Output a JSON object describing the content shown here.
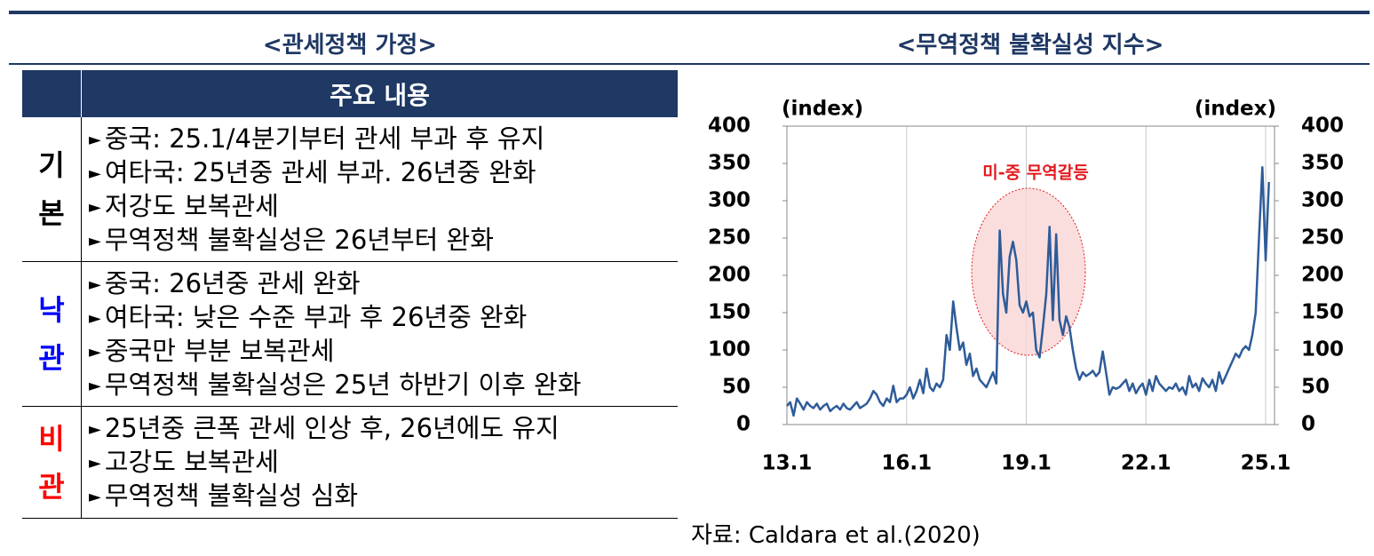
{
  "left": {
    "title": "<관세정책 가정>",
    "table": {
      "header": "주요 내용",
      "rows": [
        {
          "label": "기본",
          "label_color": "#000000",
          "items": [
            "중국: 25.1/4분기부터 관세 부과 후 유지",
            "여타국: 25년중 관세 부과. 26년중 완화",
            "저강도 보복관세",
            "무역정책 불확실성은 26년부터 완화"
          ]
        },
        {
          "label": "낙관",
          "label_color": "#0000ff",
          "items": [
            "중국: 26년중 관세 완화",
            "여타국: 낮은 수준 부과 후 26년중 완화",
            "중국만 부분 보복관세",
            "무역정책 불확실성은 25년 하반기 이후 완화"
          ]
        },
        {
          "label": "비관",
          "label_color": "#ff0000",
          "items": [
            "25년중 큰폭 관세 인상 후, 26년에도 유지",
            "고강도 보복관세",
            "무역정책 불확실성 심화"
          ]
        }
      ]
    }
  },
  "chart_data": {
    "type": "line",
    "title": "<무역정책 불확실성 지수>",
    "y_label": "(index)",
    "y2_label": "(index)",
    "annotation": "미-중 무역갈등",
    "annotation_color": "#e31a1c",
    "categories": [
      "13.1",
      null,
      null,
      null,
      null,
      null,
      null,
      null,
      null,
      null,
      null,
      null,
      null,
      null,
      null,
      null,
      null,
      null,
      null,
      null,
      null,
      null,
      null,
      null,
      null,
      null,
      null,
      null,
      null,
      null,
      null,
      null,
      null,
      null,
      null,
      null,
      "16.1",
      null,
      null,
      null,
      null,
      null,
      null,
      null,
      null,
      null,
      null,
      null,
      null,
      null,
      null,
      null,
      null,
      null,
      null,
      null,
      null,
      null,
      null,
      null,
      null,
      null,
      null,
      null,
      null,
      null,
      null,
      null,
      null,
      null,
      null,
      null,
      "19.1",
      null,
      null,
      null,
      null,
      null,
      null,
      null,
      null,
      null,
      null,
      null,
      null,
      null,
      null,
      null,
      null,
      null,
      null,
      null,
      null,
      null,
      null,
      null,
      null,
      null,
      null,
      null,
      null,
      null,
      null,
      null,
      null,
      null,
      null,
      null,
      "22.1",
      null,
      null,
      null,
      null,
      null,
      null,
      null,
      null,
      null,
      null,
      null,
      null,
      null,
      null,
      null,
      null,
      null,
      null,
      null,
      null,
      null,
      null,
      null,
      null,
      null,
      null,
      null,
      null,
      null,
      null,
      null,
      null,
      null,
      null,
      null,
      "25.1",
      null
    ],
    "series": [
      {
        "name": "무역정책 불확실성 지수",
        "color": "#2e5c99",
        "values": [
          25,
          30,
          12,
          35,
          28,
          20,
          30,
          25,
          22,
          28,
          20,
          25,
          28,
          18,
          22,
          25,
          20,
          28,
          22,
          20,
          25,
          30,
          22,
          25,
          28,
          35,
          45,
          40,
          30,
          25,
          35,
          30,
          52,
          30,
          35,
          35,
          40,
          50,
          35,
          45,
          60,
          42,
          75,
          50,
          45,
          55,
          50,
          60,
          120,
          100,
          165,
          130,
          100,
          110,
          80,
          95,
          65,
          75,
          60,
          55,
          50,
          60,
          70,
          55,
          260,
          175,
          150,
          225,
          245,
          220,
          160,
          150,
          165,
          145,
          150,
          100,
          90,
          130,
          175,
          265,
          140,
          255,
          140,
          120,
          145,
          130,
          100,
          75,
          60,
          70,
          65,
          68,
          72,
          65,
          70,
          98,
          70,
          40,
          50,
          48,
          50,
          55,
          60,
          45,
          55,
          42,
          50,
          55,
          40,
          60,
          45,
          65,
          55,
          50,
          45,
          50,
          48,
          55,
          45,
          50,
          40,
          65,
          50,
          55,
          45,
          62,
          55,
          50,
          60,
          45,
          70,
          55,
          65,
          75,
          85,
          95,
          90,
          100,
          105,
          100,
          120,
          150,
          250,
          345,
          220,
          325
        ]
      }
    ],
    "ylim": [
      0,
      400
    ],
    "yticks": [
      0,
      50,
      100,
      150,
      200,
      250,
      300,
      350,
      400
    ],
    "y2lim": [
      0,
      400
    ],
    "y2ticks": [
      0,
      50,
      100,
      150,
      200,
      250,
      300,
      350,
      400
    ],
    "grid": true
  },
  "source": "자료: Caldara et al.(2020)"
}
